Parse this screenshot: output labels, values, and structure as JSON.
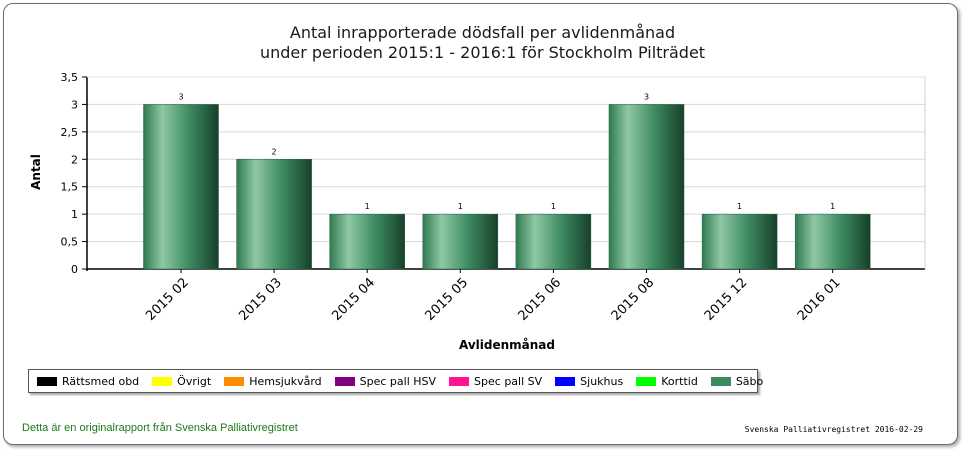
{
  "chart_data": {
    "type": "bar",
    "title_line1": "Antal inrapporterade dödsfall per avlidenmånad",
    "title_line2": "under perioden 2015:1 - 2016:1 för Stockholm Pilträdet",
    "xlabel": "Avlidenmånad",
    "ylabel": "Antal",
    "categories": [
      "2015 02",
      "2015 03",
      "2015 04",
      "2015 05",
      "2015 06",
      "2015 08",
      "2015 12",
      "2016 01"
    ],
    "series": [
      {
        "name": "Säbo",
        "values": [
          3,
          2,
          1,
          1,
          1,
          3,
          1,
          1
        ],
        "color": "#3a8a5e"
      }
    ],
    "ylim": [
      0,
      3.5
    ],
    "yticks": [
      "0",
      "0,5",
      "1",
      "1,5",
      "2",
      "2,5",
      "3",
      "3,5"
    ],
    "ytick_values": [
      0,
      0.5,
      1,
      1.5,
      2,
      2.5,
      3,
      3.5
    ],
    "grid": true,
    "legend_position": "bottom-left"
  },
  "legend": [
    {
      "label": "Rättsmed obd",
      "color": "#000000"
    },
    {
      "label": "Övrigt",
      "color": "#ffff00"
    },
    {
      "label": "Hemsjukvård",
      "color": "#ff8c00"
    },
    {
      "label": "Spec pall HSV",
      "color": "#800080"
    },
    {
      "label": "Spec pall SV",
      "color": "#ff1493"
    },
    {
      "label": "Sjukhus",
      "color": "#0000ff"
    },
    {
      "label": "Korttid",
      "color": "#00ff00"
    },
    {
      "label": "Säbo",
      "color": "#3a8a5e"
    }
  ],
  "footer": {
    "left": "Detta är en originalrapport från Svenska Palliativregistret",
    "right": "Svenska Palliativregistret 2016-02-29"
  }
}
